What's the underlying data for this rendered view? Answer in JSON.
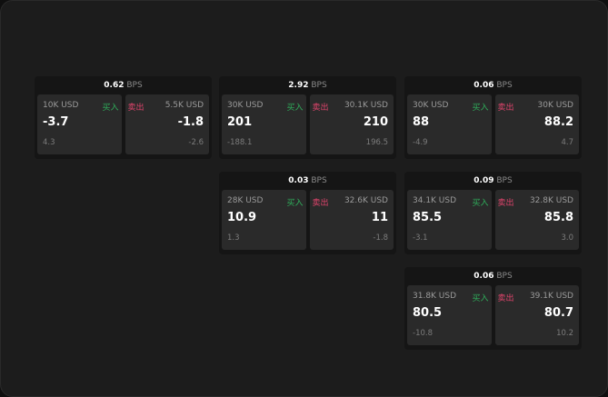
{
  "unit": "BPS",
  "buy_label": "买入",
  "sell_label": "卖出",
  "colors": {
    "buy": "#2fae5b",
    "sell": "#e0446c"
  },
  "cards": [
    {
      "spread": "0.62",
      "bid": {
        "size": "10K USD",
        "price": "-3.7",
        "change": "4.3"
      },
      "ask": {
        "size": "5.5K USD",
        "price": "-1.8",
        "change": "-2.6"
      }
    },
    {
      "spread": "2.92",
      "bid": {
        "size": "30K USD",
        "price": "201",
        "change": "-188.1"
      },
      "ask": {
        "size": "30.1K USD",
        "price": "210",
        "change": "196.5"
      }
    },
    {
      "spread": "0.06",
      "bid": {
        "size": "30K USD",
        "price": "88",
        "change": "-4.9"
      },
      "ask": {
        "size": "30K USD",
        "price": "88.2",
        "change": "4.7"
      }
    },
    {
      "spread": "0.03",
      "bid": {
        "size": "28K USD",
        "price": "10.9",
        "change": "1.3"
      },
      "ask": {
        "size": "32.6K USD",
        "price": "11",
        "change": "-1.8"
      }
    },
    {
      "spread": "0.09",
      "bid": {
        "size": "34.1K USD",
        "price": "85.5",
        "change": "-3.1"
      },
      "ask": {
        "size": "32.8K USD",
        "price": "85.8",
        "change": "3.0"
      }
    },
    {
      "spread": "0.06",
      "bid": {
        "size": "31.8K USD",
        "price": "80.5",
        "change": "-10.8"
      },
      "ask": {
        "size": "39.1K USD",
        "price": "80.7",
        "change": "10.2"
      }
    }
  ]
}
